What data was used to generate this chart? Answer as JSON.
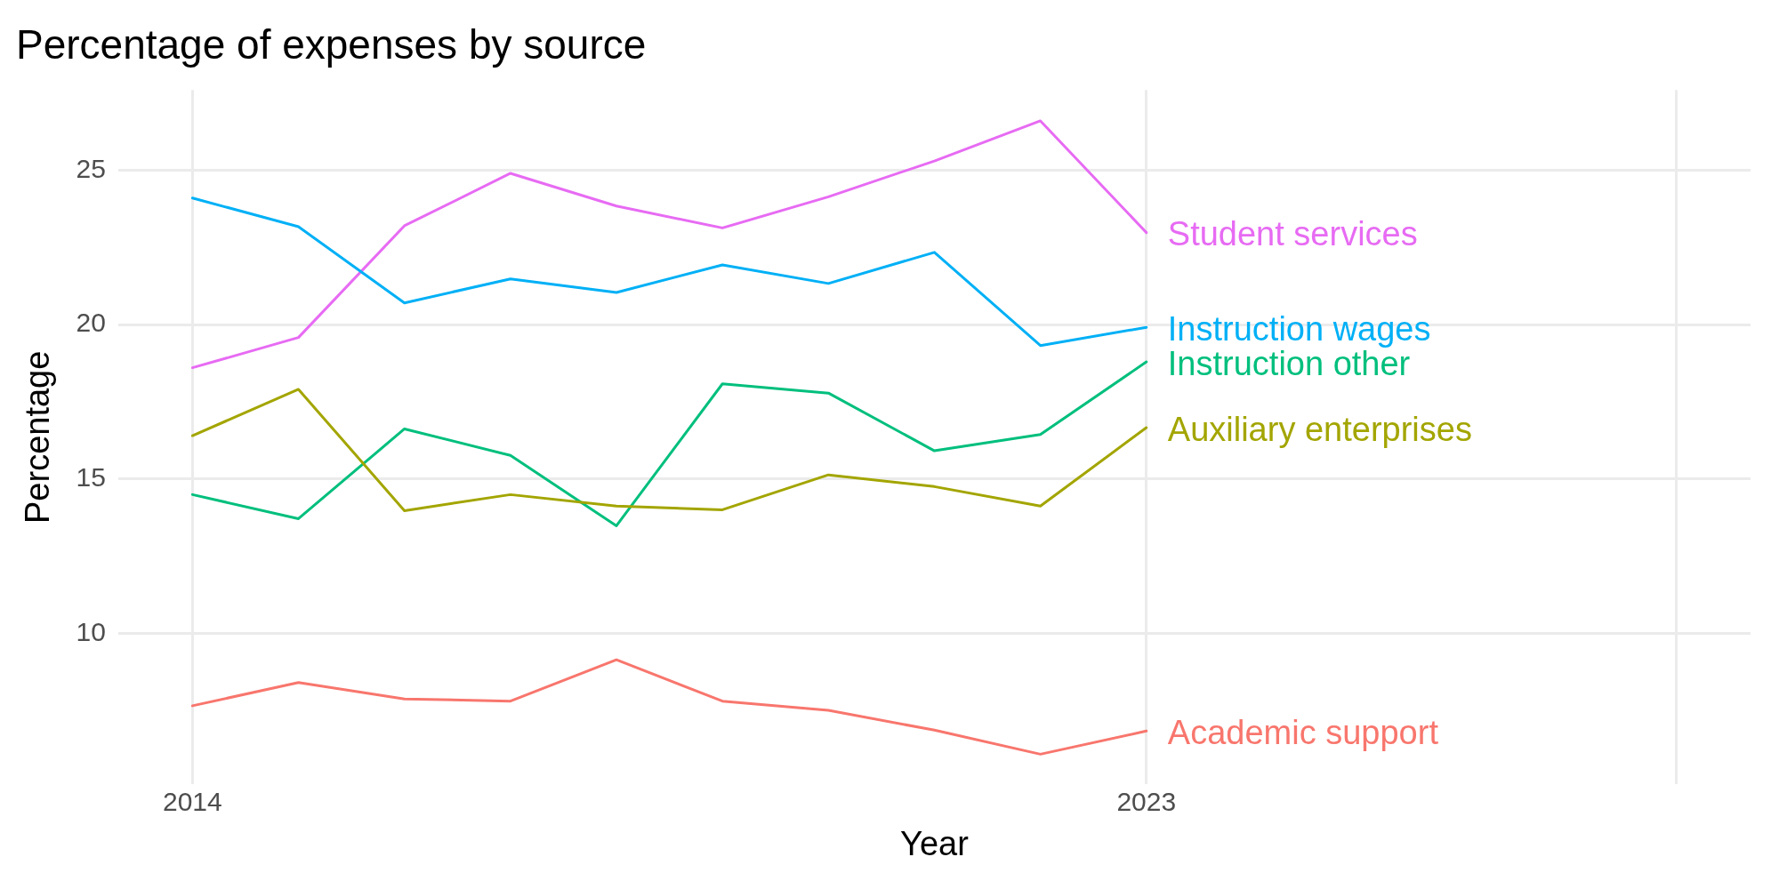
{
  "chart_data": {
    "type": "line",
    "title": "Percentage of expenses by source",
    "xlabel": "Year",
    "ylabel": "Percentage",
    "x": [
      2014,
      2015,
      2016,
      2017,
      2018,
      2019,
      2020,
      2021,
      2022,
      2023
    ],
    "xlim": [
      2013.3,
      2028.7
    ],
    "xticks": [
      2014,
      2023,
      {
        "value": 2028,
        "label": null
      }
    ],
    "ylim": [
      5.1,
      27.6
    ],
    "yticks": [
      10,
      15,
      20,
      25
    ],
    "grid": true,
    "legend": false,
    "marker": "none",
    "line_style": "solid",
    "series": [
      {
        "name": "Academic support",
        "color": "#f8766d",
        "values": [
          7.65,
          8.4,
          7.87,
          7.8,
          9.14,
          7.8,
          7.5,
          6.86,
          6.08,
          6.83
        ]
      },
      {
        "name": "Auxiliary enterprises",
        "color": "#a3a500",
        "values": [
          16.4,
          17.9,
          13.97,
          14.49,
          14.12,
          14.0,
          15.13,
          14.75,
          14.12,
          16.66
        ]
      },
      {
        "name": "Instruction other",
        "color": "#00bf7d",
        "values": [
          14.49,
          13.71,
          16.62,
          15.76,
          13.48,
          18.08,
          17.78,
          15.91,
          16.44,
          18.79
        ]
      },
      {
        "name": "Instruction wages",
        "color": "#00b0f6",
        "values": [
          24.1,
          23.17,
          20.7,
          21.48,
          21.04,
          21.93,
          21.33,
          22.34,
          19.32,
          19.91
        ]
      },
      {
        "name": "Student services",
        "color": "#e76bf3",
        "values": [
          18.6,
          19.58,
          23.2,
          24.9,
          23.84,
          23.13,
          24.14,
          25.3,
          26.6,
          22.98
        ]
      }
    ]
  }
}
